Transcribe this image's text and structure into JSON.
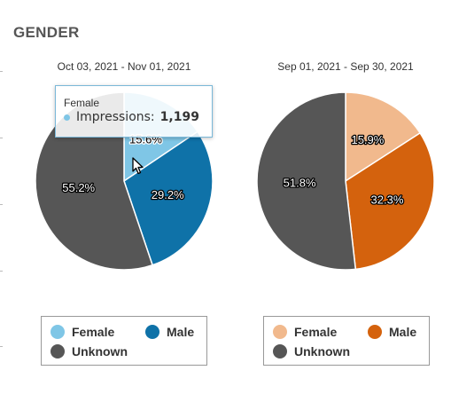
{
  "section": {
    "title": "GENDER"
  },
  "colors": {
    "female_blue": "#7fc6e6",
    "male_blue": "#0f72a8",
    "female_orange": "#f1b98d",
    "male_orange": "#d4620d",
    "unknown": "#565656",
    "slice_border": "#ffffff"
  },
  "chart_data": [
    {
      "type": "pie",
      "title": "Oct 03, 2021 - Nov 01, 2021",
      "categories": [
        "Female",
        "Male",
        "Unknown"
      ],
      "values": [
        15.6,
        29.2,
        55.2
      ],
      "labels": [
        "15.6%",
        "29.2%",
        "55.2%"
      ],
      "colors": [
        "#7fc6e6",
        "#0f72a8",
        "#565656"
      ],
      "legend": [
        "Female",
        "Male",
        "Unknown"
      ],
      "legend_position": "bottom",
      "hovered": "Female"
    },
    {
      "type": "pie",
      "title": "Sep 01, 2021 - Sep 30, 2021",
      "categories": [
        "Female",
        "Male",
        "Unknown"
      ],
      "values": [
        15.9,
        32.3,
        51.8
      ],
      "labels": [
        "15.9%",
        "32.3%",
        "51.8%"
      ],
      "colors": [
        "#f1b98d",
        "#d4620d",
        "#565656"
      ],
      "legend": [
        "Female",
        "Male",
        "Unknown"
      ],
      "legend_position": "bottom"
    }
  ],
  "tooltip": {
    "title": "Female",
    "metric_label": "Impressions:",
    "metric_value": "1,199",
    "dot_color": "#7fc6e6"
  },
  "cursor_icon": "arrow-cursor-icon"
}
